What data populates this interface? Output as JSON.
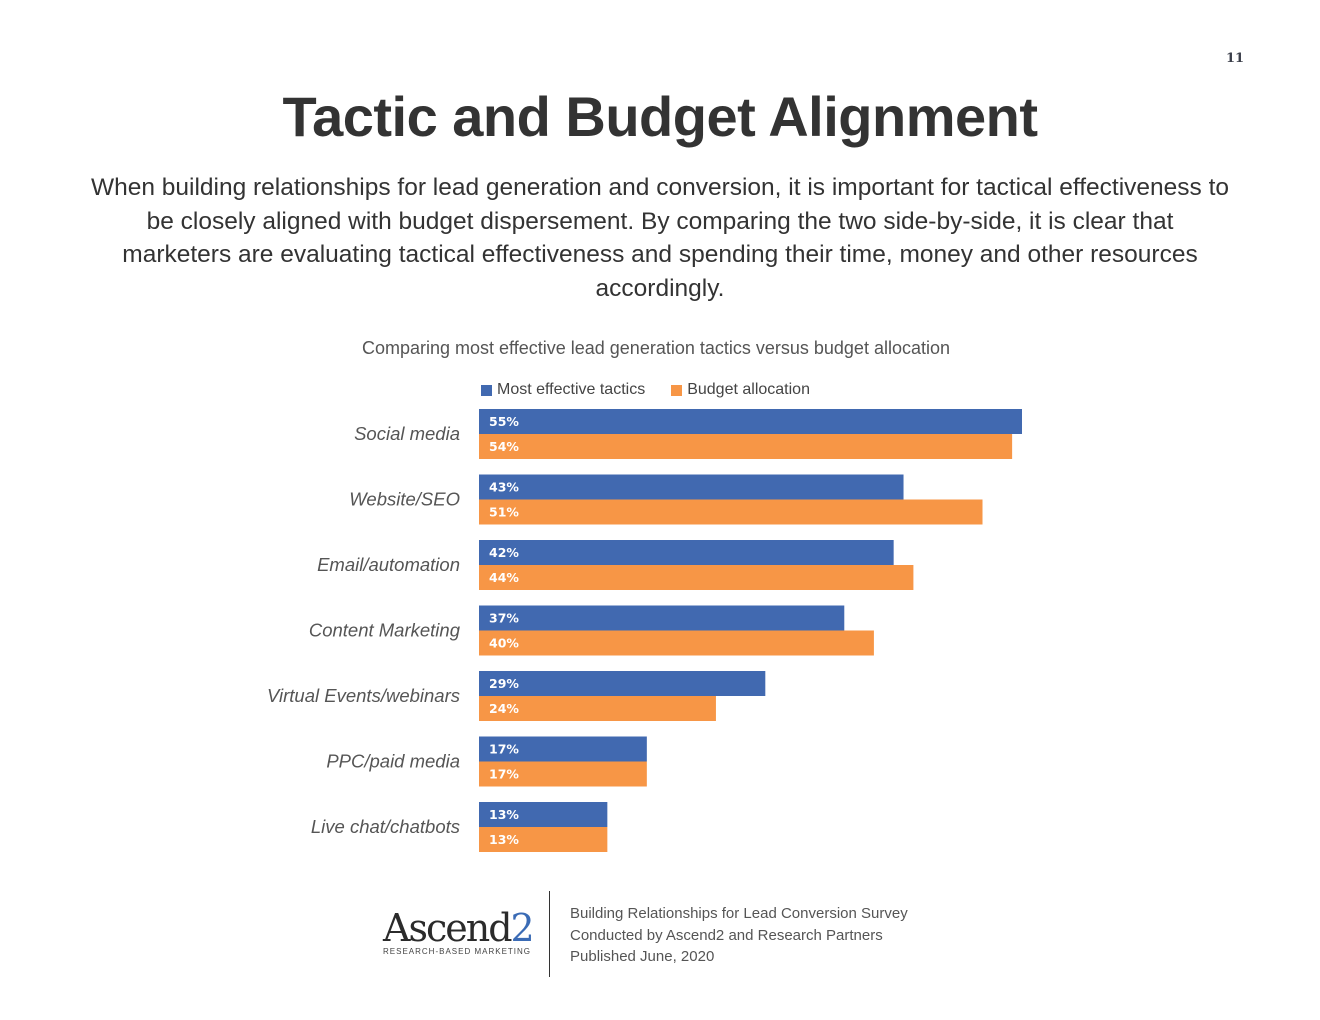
{
  "page_number": "11",
  "title": "Tactic and Budget Alignment",
  "intro": "When building relationships for lead generation and conversion, it is important for tactical effectiveness to be closely aligned with budget dispersement. By comparing the two side-by-side, it is clear that marketers are evaluating tactical effectiveness and spending their time, money and other resources accordingly.",
  "colors": {
    "effective": "#4169b0",
    "budget": "#f79646",
    "text": "#333333"
  },
  "chart_data": {
    "type": "bar",
    "orientation": "horizontal",
    "title": "Comparing most effective lead generation tactics versus budget allocation",
    "xlabel": "",
    "ylabel": "",
    "xlim": [
      0,
      55
    ],
    "grid": false,
    "legend_position": "top",
    "categories": [
      "Social media",
      "Website/SEO",
      "Email/automation",
      "Content Marketing",
      "Virtual Events/webinars",
      "PPC/paid media",
      "Live chat/chatbots"
    ],
    "series": [
      {
        "name": "Most effective tactics",
        "color": "#4169b0",
        "values": [
          55,
          43,
          42,
          37,
          29,
          17,
          13
        ]
      },
      {
        "name": "Budget allocation",
        "color": "#f79646",
        "values": [
          54,
          51,
          44,
          40,
          24,
          17,
          13
        ]
      }
    ],
    "value_suffix": "%"
  },
  "footer": {
    "logo_name": "Ascend",
    "logo_number": "2",
    "logo_tagline": "RESEARCH-BASED MARKETING",
    "lines": [
      "Building Relationships for Lead Conversion Survey",
      "Conducted by Ascend2 and Research Partners",
      "Published June, 2020"
    ]
  }
}
